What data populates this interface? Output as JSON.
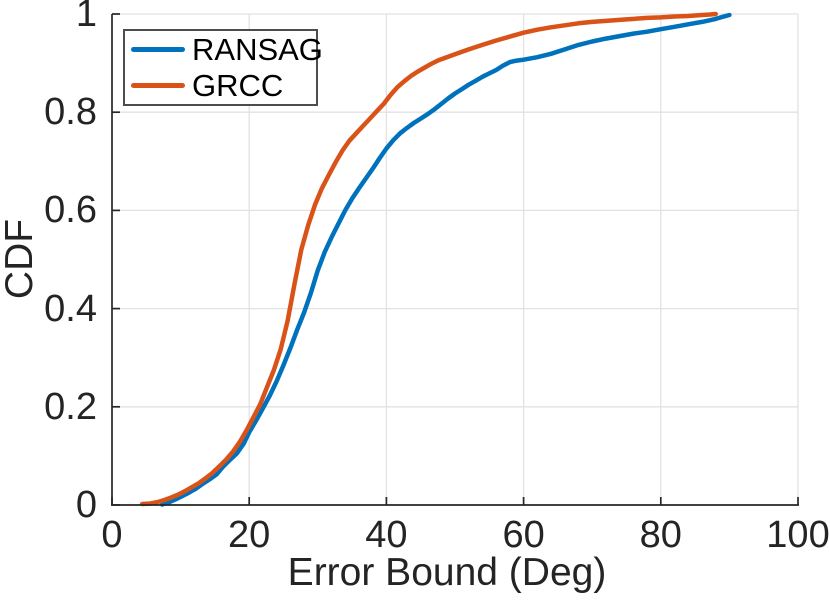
{
  "chart_data": {
    "type": "line",
    "title": "",
    "xlabel": "Error Bound (Deg)",
    "ylabel": "CDF",
    "xlim": [
      0,
      100
    ],
    "ylim": [
      0,
      1
    ],
    "xticks": [
      "0",
      "20",
      "40",
      "60",
      "80",
      "100"
    ],
    "xtick_values": [
      0,
      20,
      40,
      60,
      80,
      100
    ],
    "yticks": [
      "0",
      "0.2",
      "0.4",
      "0.6",
      "0.8",
      "1"
    ],
    "ytick_values": [
      0,
      0.2,
      0.4,
      0.6,
      0.8,
      1
    ],
    "grid": true,
    "legend_position": "top-left",
    "series": [
      {
        "name": "RANSAG",
        "color": "#0072BD",
        "points": [
          [
            7.3,
            0.001
          ],
          [
            8.2,
            0.005
          ],
          [
            9.2,
            0.011
          ],
          [
            10.2,
            0.018
          ],
          [
            11.2,
            0.025
          ],
          [
            12.2,
            0.033
          ],
          [
            13.2,
            0.043
          ],
          [
            14.2,
            0.052
          ],
          [
            15.2,
            0.062
          ],
          [
            16.2,
            0.078
          ],
          [
            17.2,
            0.092
          ],
          [
            18.2,
            0.105
          ],
          [
            19.2,
            0.125
          ],
          [
            20,
            0.148
          ],
          [
            21,
            0.172
          ],
          [
            22,
            0.197
          ],
          [
            23,
            0.223
          ],
          [
            24,
            0.252
          ],
          [
            25,
            0.285
          ],
          [
            26,
            0.32
          ],
          [
            27,
            0.357
          ],
          [
            28,
            0.392
          ],
          [
            29,
            0.432
          ],
          [
            30,
            0.478
          ],
          [
            31,
            0.515
          ],
          [
            32,
            0.545
          ],
          [
            33,
            0.573
          ],
          [
            34,
            0.6
          ],
          [
            35,
            0.624
          ],
          [
            36,
            0.645
          ],
          [
            37,
            0.665
          ],
          [
            38,
            0.685
          ],
          [
            39,
            0.706
          ],
          [
            40,
            0.726
          ],
          [
            41,
            0.743
          ],
          [
            42,
            0.757
          ],
          [
            43,
            0.768
          ],
          [
            44,
            0.778
          ],
          [
            45,
            0.787
          ],
          [
            46,
            0.796
          ],
          [
            47,
            0.806
          ],
          [
            48,
            0.817
          ],
          [
            49,
            0.828
          ],
          [
            50,
            0.838
          ],
          [
            51,
            0.847
          ],
          [
            52,
            0.856
          ],
          [
            53,
            0.864
          ],
          [
            54,
            0.872
          ],
          [
            55,
            0.879
          ],
          [
            56,
            0.886
          ],
          [
            57,
            0.895
          ],
          [
            58,
            0.902
          ],
          [
            59,
            0.905
          ],
          [
            60,
            0.907
          ],
          [
            62,
            0.912
          ],
          [
            64,
            0.919
          ],
          [
            66,
            0.928
          ],
          [
            68,
            0.937
          ],
          [
            70,
            0.944
          ],
          [
            72,
            0.95
          ],
          [
            74,
            0.955
          ],
          [
            76,
            0.96
          ],
          [
            78,
            0.964
          ],
          [
            80,
            0.969
          ],
          [
            82,
            0.974
          ],
          [
            84,
            0.979
          ],
          [
            86,
            0.984
          ],
          [
            88,
            0.99
          ],
          [
            89,
            0.994
          ],
          [
            90,
            0.998
          ]
        ]
      },
      {
        "name": "GRCC",
        "color": "#D95319",
        "points": [
          [
            4.4,
            0.002
          ],
          [
            5.6,
            0.003
          ],
          [
            6.6,
            0.006
          ],
          [
            7.6,
            0.01
          ],
          [
            8.6,
            0.015
          ],
          [
            9.6,
            0.021
          ],
          [
            10.6,
            0.028
          ],
          [
            11.6,
            0.036
          ],
          [
            12.6,
            0.044
          ],
          [
            13.6,
            0.054
          ],
          [
            14.6,
            0.065
          ],
          [
            15.6,
            0.078
          ],
          [
            16.6,
            0.092
          ],
          [
            17.6,
            0.108
          ],
          [
            18.6,
            0.128
          ],
          [
            19.6,
            0.152
          ],
          [
            20.6,
            0.178
          ],
          [
            21.6,
            0.205
          ],
          [
            22.6,
            0.24
          ],
          [
            23.6,
            0.275
          ],
          [
            24.6,
            0.318
          ],
          [
            25.6,
            0.375
          ],
          [
            26.6,
            0.45
          ],
          [
            27.6,
            0.52
          ],
          [
            28.6,
            0.57
          ],
          [
            29.6,
            0.612
          ],
          [
            30.6,
            0.645
          ],
          [
            31.6,
            0.672
          ],
          [
            32.6,
            0.698
          ],
          [
            33.6,
            0.722
          ],
          [
            34.6,
            0.742
          ],
          [
            35.6,
            0.757
          ],
          [
            36.6,
            0.772
          ],
          [
            37.6,
            0.787
          ],
          [
            38.6,
            0.802
          ],
          [
            39.6,
            0.817
          ],
          [
            40.6,
            0.835
          ],
          [
            41.6,
            0.851
          ],
          [
            42.6,
            0.863
          ],
          [
            43.6,
            0.874
          ],
          [
            44.6,
            0.883
          ],
          [
            45.6,
            0.891
          ],
          [
            46.6,
            0.899
          ],
          [
            47.6,
            0.906
          ],
          [
            48.6,
            0.911
          ],
          [
            50,
            0.918
          ],
          [
            52,
            0.928
          ],
          [
            54,
            0.937
          ],
          [
            56,
            0.946
          ],
          [
            58,
            0.954
          ],
          [
            60,
            0.962
          ],
          [
            62,
            0.968
          ],
          [
            64,
            0.973
          ],
          [
            66,
            0.977
          ],
          [
            68,
            0.981
          ],
          [
            70,
            0.984
          ],
          [
            72,
            0.986
          ],
          [
            75,
            0.989
          ],
          [
            78,
            0.992
          ],
          [
            80,
            0.993
          ],
          [
            82,
            0.995
          ],
          [
            84,
            0.996
          ],
          [
            86,
            0.998
          ],
          [
            87.2,
            0.999
          ],
          [
            88,
            1.0
          ]
        ]
      }
    ]
  },
  "style": {
    "background": "#ffffff",
    "axis_color": "#262626",
    "grid_color": "#e2e2e2",
    "text_color": "#242424",
    "legend_border_color": "#4d4d4d",
    "line_width": 4.5
  }
}
